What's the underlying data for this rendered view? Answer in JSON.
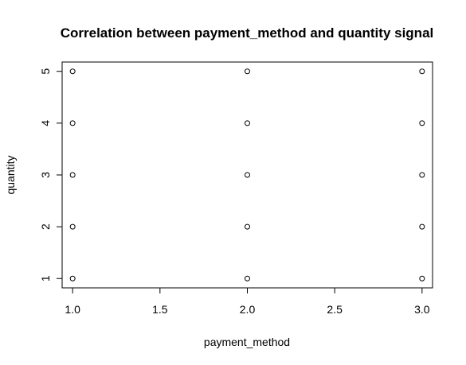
{
  "chart_data": {
    "type": "scatter",
    "title": "Correlation between payment_method and quantity signal",
    "xlabel": "payment_method",
    "ylabel": "quantity",
    "xlim": [
      0.94,
      3.06
    ],
    "ylim": [
      0.82,
      5.18
    ],
    "x_ticks": [
      "1.0",
      "1.5",
      "2.0",
      "2.5",
      "3.0"
    ],
    "y_ticks": [
      "1",
      "2",
      "3",
      "4",
      "5"
    ],
    "grid": false,
    "marker": "open-circle",
    "points": [
      {
        "x": 1,
        "y": 1
      },
      {
        "x": 1,
        "y": 2
      },
      {
        "x": 1,
        "y": 3
      },
      {
        "x": 1,
        "y": 4
      },
      {
        "x": 1,
        "y": 5
      },
      {
        "x": 2,
        "y": 1
      },
      {
        "x": 2,
        "y": 2
      },
      {
        "x": 2,
        "y": 3
      },
      {
        "x": 2,
        "y": 4
      },
      {
        "x": 2,
        "y": 5
      },
      {
        "x": 3,
        "y": 1
      },
      {
        "x": 3,
        "y": 2
      },
      {
        "x": 3,
        "y": 3
      },
      {
        "x": 3,
        "y": 4
      },
      {
        "x": 3,
        "y": 5
      }
    ]
  }
}
